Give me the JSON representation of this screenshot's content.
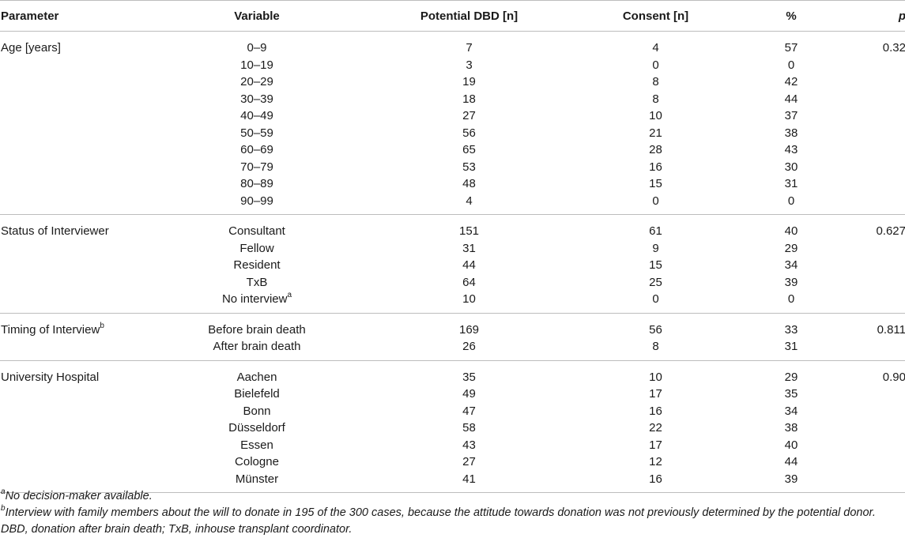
{
  "headers": {
    "parameter": "Parameter",
    "variable": "Variable",
    "potential": "Potential DBD [n]",
    "consent": "Consent [n]",
    "percent": "%",
    "p": "p"
  },
  "groups": [
    {
      "name": "Age [years]",
      "sup": "",
      "p": "0.32",
      "rows": [
        {
          "variable": "0–9",
          "sup": "",
          "potential": "7",
          "consent": "4",
          "percent": "57"
        },
        {
          "variable": "10–19",
          "sup": "",
          "potential": "3",
          "consent": "0",
          "percent": "0"
        },
        {
          "variable": "20–29",
          "sup": "",
          "potential": "19",
          "consent": "8",
          "percent": "42"
        },
        {
          "variable": "30–39",
          "sup": "",
          "potential": "18",
          "consent": "8",
          "percent": "44"
        },
        {
          "variable": "40–49",
          "sup": "",
          "potential": "27",
          "consent": "10",
          "percent": "37"
        },
        {
          "variable": "50–59",
          "sup": "",
          "potential": "56",
          "consent": "21",
          "percent": "38"
        },
        {
          "variable": "60–69",
          "sup": "",
          "potential": "65",
          "consent": "28",
          "percent": "43"
        },
        {
          "variable": "70–79",
          "sup": "",
          "potential": "53",
          "consent": "16",
          "percent": "30"
        },
        {
          "variable": "80–89",
          "sup": "",
          "potential": "48",
          "consent": "15",
          "percent": "31"
        },
        {
          "variable": "90–99",
          "sup": "",
          "potential": "4",
          "consent": "0",
          "percent": "0"
        }
      ]
    },
    {
      "name": "Status of Interviewer",
      "sup": "",
      "p": "0.627",
      "rows": [
        {
          "variable": "Consultant",
          "sup": "",
          "potential": "151",
          "consent": "61",
          "percent": "40"
        },
        {
          "variable": "Fellow",
          "sup": "",
          "potential": "31",
          "consent": "9",
          "percent": "29"
        },
        {
          "variable": "Resident",
          "sup": "",
          "potential": "44",
          "consent": "15",
          "percent": "34"
        },
        {
          "variable": "TxB",
          "sup": "",
          "potential": "64",
          "consent": "25",
          "percent": "39"
        },
        {
          "variable": "No interview",
          "sup": "a",
          "potential": "10",
          "consent": "0",
          "percent": "0"
        }
      ]
    },
    {
      "name": "Timing of Interview",
      "sup": "b",
      "p": "0.811",
      "rows": [
        {
          "variable": "Before brain death",
          "sup": "",
          "potential": "169",
          "consent": "56",
          "percent": "33"
        },
        {
          "variable": "After brain death",
          "sup": "",
          "potential": "26",
          "consent": "8",
          "percent": "31"
        }
      ]
    },
    {
      "name": "University Hospital",
      "sup": "",
      "p": "0.90",
      "rows": [
        {
          "variable": "Aachen",
          "sup": "",
          "potential": "35",
          "consent": "10",
          "percent": "29"
        },
        {
          "variable": "Bielefeld",
          "sup": "",
          "potential": "49",
          "consent": "17",
          "percent": "35"
        },
        {
          "variable": "Bonn",
          "sup": "",
          "potential": "47",
          "consent": "16",
          "percent": "34"
        },
        {
          "variable": "Düsseldorf",
          "sup": "",
          "potential": "58",
          "consent": "22",
          "percent": "38"
        },
        {
          "variable": "Essen",
          "sup": "",
          "potential": "43",
          "consent": "17",
          "percent": "40"
        },
        {
          "variable": "Cologne",
          "sup": "",
          "potential": "27",
          "consent": "12",
          "percent": "44"
        },
        {
          "variable": "Münster",
          "sup": "",
          "potential": "41",
          "consent": "16",
          "percent": "39"
        }
      ]
    }
  ],
  "footnotes": [
    {
      "sup": "a",
      "text": "No decision-maker available."
    },
    {
      "sup": "b",
      "text": "Interview with family members about the will to donate in 195 of the 300 cases, because the attitude towards donation was not previously determined by the potential donor."
    },
    {
      "sup": "",
      "text": "DBD, donation after brain death; TxB, inhouse transplant coordinator."
    }
  ]
}
